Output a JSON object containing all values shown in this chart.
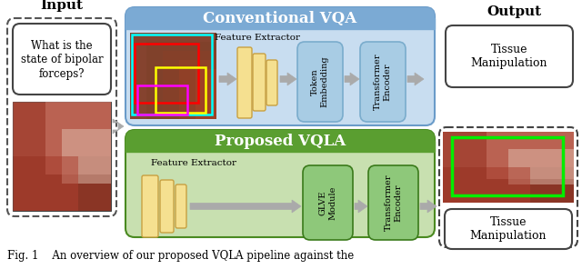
{
  "title": "Fig. 1    An overview of our proposed VQLA pipeline against the",
  "bg_color": "#ffffff",
  "conv_vqa_bg": "#c8ddf0",
  "conv_vqa_header_bg": "#7baad4",
  "proposed_vqla_bg": "#c8e0b0",
  "proposed_vqla_header_bg": "#5a9e30",
  "block_yellow": "#f5e090",
  "block_blue_light": "#a8cce4",
  "block_green_light": "#8ec87a",
  "input_label": "Input",
  "output_label": "Output",
  "conv_vqa_label": "Conventional VQA",
  "proposed_vqla_label": "Proposed VQLA",
  "feat_ext_label": "Feature Extractor",
  "feat_ext2_label": "Feature Extractor",
  "token_embed_label": "Token\nEmbedding",
  "transformer_enc_label": "Transformer\nEncoder",
  "glve_label": "GLVE\nModule",
  "transformer_enc2_label": "Transformer\nEncoder",
  "tissue_manip_label": "Tissue\nManipulation",
  "tissue_manip2_label": "Tissue\nManipulation",
  "question_text": "What is the\nstate of bipolar\nforceps?",
  "arrow_color": "#aaaaaa",
  "figsize": [
    6.4,
    2.96
  ],
  "dpi": 100
}
